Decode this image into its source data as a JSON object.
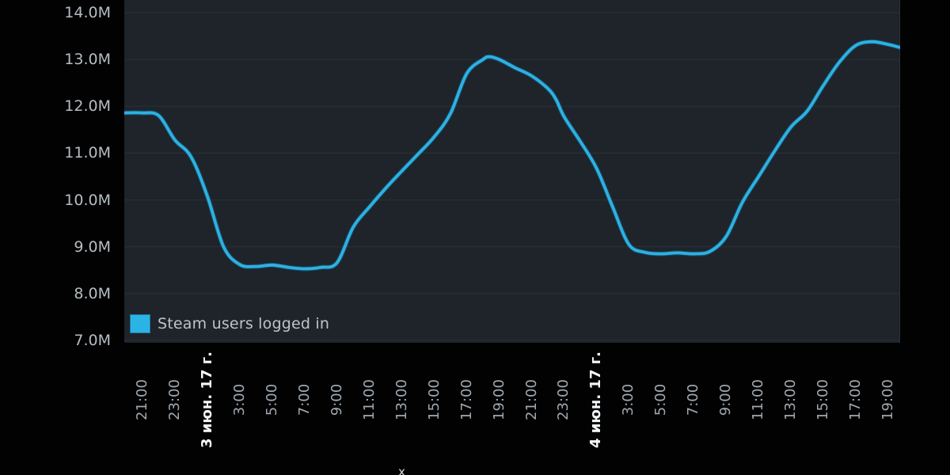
{
  "chart": {
    "legend_label": "Steam users logged in",
    "clipped_text_fragment": "х",
    "colors": {
      "series_line": "#2db1e2",
      "series_line_halo": "#16749f",
      "legend_swatch": "#2cb3e6",
      "plot_background": "#1e242a",
      "page_background": "#020202",
      "gridline": "#2a3138",
      "y_label_text": "#b5bdc3",
      "x_time_label_text": "#a0a8af",
      "x_date_label_text": "#f5f8fa",
      "legend_text": "#bcc5cb"
    }
  },
  "chart_data": {
    "type": "line",
    "title": "",
    "legend_entries": [
      "Steam users logged in"
    ],
    "legend_position": "bottom-left inside plot",
    "grid": "horizontal gridlines at every 1.0M",
    "y_axis": {
      "unit": "millions of users",
      "min_visible": 7.0,
      "max_visible": 14.1,
      "tick_values_millions": [
        14,
        13,
        12,
        11,
        10,
        9,
        8,
        7
      ],
      "tick_labels": [
        "14.0M",
        "13.0M",
        "12.0M",
        "11.0M",
        "10.0M",
        "9.0M",
        "8.0M",
        "7.0M"
      ]
    },
    "x_axis": {
      "t_unit": "hours after 21:00 on 2 Jun 2017 (2-hour tick spacing; date ticks sit at the 01:00 slot)",
      "ticks": [
        {
          "t": 0,
          "label": "21:00",
          "type": "time"
        },
        {
          "t": 2,
          "label": "23:00",
          "type": "time"
        },
        {
          "t": 4,
          "label": "3 июн. 17 г.",
          "type": "date"
        },
        {
          "t": 6,
          "label": "3:00",
          "type": "time"
        },
        {
          "t": 8,
          "label": "5:00",
          "type": "time"
        },
        {
          "t": 10,
          "label": "7:00",
          "type": "time"
        },
        {
          "t": 12,
          "label": "9:00",
          "type": "time"
        },
        {
          "t": 14,
          "label": "11:00",
          "type": "time"
        },
        {
          "t": 16,
          "label": "13:00",
          "type": "time"
        },
        {
          "t": 18,
          "label": "15:00",
          "type": "time"
        },
        {
          "t": 20,
          "label": "17:00",
          "type": "time"
        },
        {
          "t": 22,
          "label": "19:00",
          "type": "time"
        },
        {
          "t": 24,
          "label": "21:00",
          "type": "time"
        },
        {
          "t": 26,
          "label": "23:00",
          "type": "time"
        },
        {
          "t": 28,
          "label": "4 июн. 17 г.",
          "type": "date"
        },
        {
          "t": 30,
          "label": "3:00",
          "type": "time"
        },
        {
          "t": 32,
          "label": "5:00",
          "type": "time"
        },
        {
          "t": 34,
          "label": "7:00",
          "type": "time"
        },
        {
          "t": 36,
          "label": "9:00",
          "type": "time"
        },
        {
          "t": 38,
          "label": "11:00",
          "type": "time"
        },
        {
          "t": 40,
          "label": "13:00",
          "type": "time"
        },
        {
          "t": 42,
          "label": "15:00",
          "type": "time"
        },
        {
          "t": 44,
          "label": "17:00",
          "type": "time"
        },
        {
          "t": 46,
          "label": "19:00",
          "type": "time"
        }
      ]
    },
    "series": [
      {
        "name": "Steam users logged in",
        "color": "#2db1e2",
        "points_t_hours_vs_millions": [
          [
            -1.15,
            11.86
          ],
          [
            0,
            11.86
          ],
          [
            1,
            11.8
          ],
          [
            2,
            11.28
          ],
          [
            3,
            10.92
          ],
          [
            4,
            10.08
          ],
          [
            5,
            9.0
          ],
          [
            6,
            8.62
          ],
          [
            7,
            8.58
          ],
          [
            8,
            8.61
          ],
          [
            9,
            8.56
          ],
          [
            10,
            8.53
          ],
          [
            11,
            8.56
          ],
          [
            12,
            8.66
          ],
          [
            13,
            9.42
          ],
          [
            14,
            9.85
          ],
          [
            15,
            10.25
          ],
          [
            16,
            10.62
          ],
          [
            17,
            10.98
          ],
          [
            18,
            11.35
          ],
          [
            19,
            11.85
          ],
          [
            20,
            12.7
          ],
          [
            21,
            13.0
          ],
          [
            21.4,
            13.06
          ],
          [
            22,
            13.0
          ],
          [
            23,
            12.82
          ],
          [
            24,
            12.65
          ],
          [
            25,
            12.38
          ],
          [
            25.5,
            12.15
          ],
          [
            26,
            11.78
          ],
          [
            27,
            11.25
          ],
          [
            28,
            10.68
          ],
          [
            29,
            9.85
          ],
          [
            30,
            9.05
          ],
          [
            31,
            8.88
          ],
          [
            32,
            8.85
          ],
          [
            33,
            8.87
          ],
          [
            34,
            8.85
          ],
          [
            35,
            8.9
          ],
          [
            36,
            9.22
          ],
          [
            37,
            9.95
          ],
          [
            38,
            10.5
          ],
          [
            39,
            11.05
          ],
          [
            40,
            11.56
          ],
          [
            41,
            11.9
          ],
          [
            42,
            12.45
          ],
          [
            43,
            12.95
          ],
          [
            44,
            13.3
          ],
          [
            45,
            13.38
          ],
          [
            46,
            13.32
          ],
          [
            46.8,
            13.25
          ]
        ]
      }
    ]
  }
}
